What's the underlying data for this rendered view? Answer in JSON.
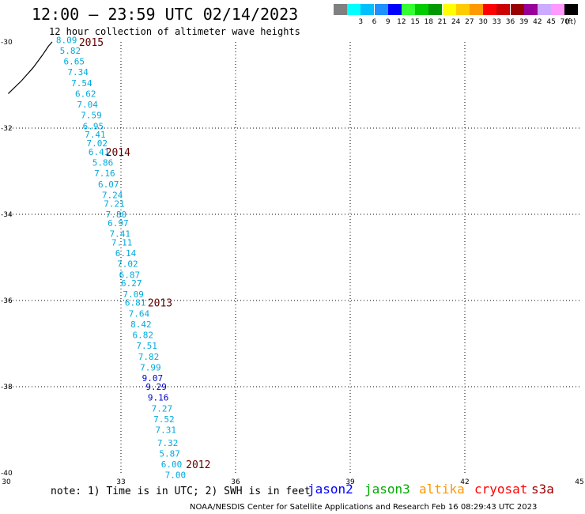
{
  "header": {
    "title": "12:00 – 23:59 UTC 02/14/2023",
    "subtitle": "12 hour collection of altimeter wave heights"
  },
  "legend": {
    "units": "(ft)",
    "bins": [
      {
        "label": "",
        "color": "#808080"
      },
      {
        "label": "3",
        "color": "#00ffff"
      },
      {
        "label": "6",
        "color": "#00bfff"
      },
      {
        "label": "9",
        "color": "#1e90ff"
      },
      {
        "label": "12",
        "color": "#0000ff"
      },
      {
        "label": "15",
        "color": "#33ff33"
      },
      {
        "label": "18",
        "color": "#00cc00"
      },
      {
        "label": "21",
        "color": "#009900"
      },
      {
        "label": "24",
        "color": "#ffff00"
      },
      {
        "label": "27",
        "color": "#ffcc00"
      },
      {
        "label": "30",
        "color": "#ff9900"
      },
      {
        "label": "33",
        "color": "#ff0000"
      },
      {
        "label": "36",
        "color": "#cc0000"
      },
      {
        "label": "39",
        "color": "#990000"
      },
      {
        "label": "42",
        "color": "#990099"
      },
      {
        "label": "45",
        "color": "#ccaaff"
      },
      {
        "label": "70",
        "color": "#ff99ff"
      },
      {
        "label": "",
        "color": "#000000"
      }
    ]
  },
  "map": {
    "lon_range": [
      30,
      45
    ],
    "lat_range": [
      -40,
      -30
    ],
    "lon_ticks": [
      "30",
      "33",
      "36",
      "39",
      "42",
      "45"
    ],
    "lat_ticks": [
      "-30",
      "-32",
      "-34",
      "-36",
      "-38",
      "-40"
    ],
    "year_labels": [
      {
        "text": "2015",
        "lon": 31.9,
        "lat": -30.0
      },
      {
        "text": "2014",
        "lon": 32.6,
        "lat": -32.55
      },
      {
        "text": "2013",
        "lon": 33.7,
        "lat": -36.05
      },
      {
        "text": "2012",
        "lon": 34.7,
        "lat": -39.8
      }
    ],
    "observations": [
      {
        "swh": "8.09",
        "lon": 31.3,
        "lat": -29.95
      },
      {
        "swh": "5.82",
        "lon": 31.4,
        "lat": -30.2
      },
      {
        "swh": "6.65",
        "lon": 31.5,
        "lat": -30.45
      },
      {
        "swh": "7.34",
        "lon": 31.6,
        "lat": -30.7
      },
      {
        "swh": "7.54",
        "lon": 31.7,
        "lat": -30.95
      },
      {
        "swh": "6.62",
        "lon": 31.8,
        "lat": -31.2
      },
      {
        "swh": "7.04",
        "lon": 31.85,
        "lat": -31.45
      },
      {
        "swh": "7.59",
        "lon": 31.95,
        "lat": -31.7
      },
      {
        "swh": "6.95",
        "lon": 32.0,
        "lat": -31.95
      },
      {
        "swh": "7.41",
        "lon": 32.05,
        "lat": -32.15
      },
      {
        "swh": "7.02",
        "lon": 32.1,
        "lat": -32.35
      },
      {
        "swh": "6.41",
        "lon": 32.15,
        "lat": -32.55
      },
      {
        "swh": "5.86",
        "lon": 32.25,
        "lat": -32.8
      },
      {
        "swh": "7.16",
        "lon": 32.3,
        "lat": -33.05
      },
      {
        "swh": "6.07",
        "lon": 32.4,
        "lat": -33.3
      },
      {
        "swh": "7.24",
        "lon": 32.5,
        "lat": -33.55
      },
      {
        "swh": "7.21",
        "lon": 32.55,
        "lat": -33.75
      },
      {
        "swh": "7.80",
        "lon": 32.6,
        "lat": -34.0
      },
      {
        "swh": "6.97",
        "lon": 32.65,
        "lat": -34.2
      },
      {
        "swh": "7.41",
        "lon": 32.7,
        "lat": -34.45
      },
      {
        "swh": "7.11",
        "lon": 32.75,
        "lat": -34.65
      },
      {
        "swh": "6.14",
        "lon": 32.85,
        "lat": -34.9
      },
      {
        "swh": "7.02",
        "lon": 32.9,
        "lat": -35.15
      },
      {
        "swh": "6.87",
        "lon": 32.95,
        "lat": -35.4
      },
      {
        "swh": "6.27",
        "lon": 33.0,
        "lat": -35.6
      },
      {
        "swh": "7.09",
        "lon": 33.05,
        "lat": -35.85
      },
      {
        "swh": "6.81",
        "lon": 33.1,
        "lat": -36.05
      },
      {
        "swh": "7.64",
        "lon": 33.2,
        "lat": -36.3
      },
      {
        "swh": "8.42",
        "lon": 33.25,
        "lat": -36.55
      },
      {
        "swh": "6.82",
        "lon": 33.3,
        "lat": -36.8
      },
      {
        "swh": "7.51",
        "lon": 33.4,
        "lat": -37.05
      },
      {
        "swh": "7.82",
        "lon": 33.45,
        "lat": -37.3
      },
      {
        "swh": "7.99",
        "lon": 33.5,
        "lat": -37.55
      },
      {
        "swh": "9.07",
        "lon": 33.55,
        "lat": -37.8
      },
      {
        "swh": "9.29",
        "lon": 33.65,
        "lat": -38.0
      },
      {
        "swh": "9.16",
        "lon": 33.7,
        "lat": -38.25
      },
      {
        "swh": "7.27",
        "lon": 33.8,
        "lat": -38.5
      },
      {
        "swh": "7.52",
        "lon": 33.85,
        "lat": -38.75
      },
      {
        "swh": "7.31",
        "lon": 33.9,
        "lat": -39.0
      },
      {
        "swh": "7.32",
        "lon": 33.95,
        "lat": -39.3
      },
      {
        "swh": "5.87",
        "lon": 34.0,
        "lat": -39.55
      },
      {
        "swh": "6.00",
        "lon": 34.05,
        "lat": -39.8
      },
      {
        "swh": "7.00",
        "lon": 34.15,
        "lat": -40.05
      }
    ],
    "coastline": [
      [
        30.05,
        -31.2
      ],
      [
        30.4,
        -30.9
      ],
      [
        30.7,
        -30.6
      ],
      [
        30.95,
        -30.3
      ],
      [
        31.1,
        -30.1
      ],
      [
        31.2,
        -30.0
      ]
    ],
    "colors": {
      "swh_6_9": "#00aadd",
      "swh_9_12": "#0000cc",
      "year_label": "#660000",
      "grid": "#000000",
      "coast": "#000000"
    }
  },
  "footer": {
    "note": "note: 1) Time is in UTC; 2) SWH is in feet",
    "satellites": [
      {
        "name": "jason2",
        "color": "#0000ff"
      },
      {
        "name": "jason3",
        "color": "#00aa00"
      },
      {
        "name": "altika",
        "color": "#ff9900"
      },
      {
        "name": "cryosat",
        "color": "#ff0000"
      },
      {
        "name": "s3a",
        "color": "#990000"
      }
    ],
    "credit": "NOAA/NESDIS Center for Satellite Applications and Research   Feb 16 08:29:43 UTC 2023"
  }
}
